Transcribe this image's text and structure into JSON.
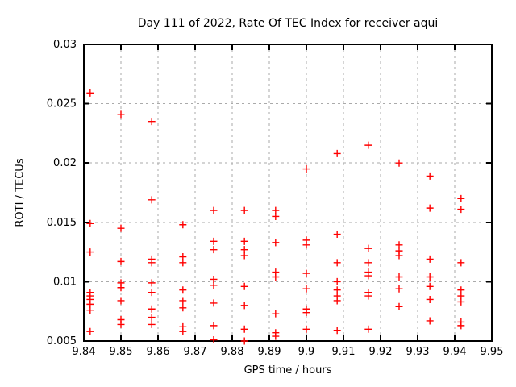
{
  "chart_data": {
    "type": "scatter",
    "title": "Day 111 of 2022, Rate Of TEC Index for receiver aqui",
    "xlabel": "GPS time / hours",
    "ylabel": "ROTI / TECUs",
    "xlim": [
      9.84,
      9.95
    ],
    "ylim": [
      0.005,
      0.03
    ],
    "xtick_values": [
      9.84,
      9.85,
      9.86,
      9.87,
      9.88,
      9.89,
      9.9,
      9.91,
      9.92,
      9.93,
      9.94,
      9.95
    ],
    "xtick_labels": [
      "9.84",
      "9.85",
      "9.86",
      "9.87",
      "9.88",
      "9.89",
      "9.9",
      "9.91",
      "9.92",
      "9.93",
      "9.94",
      "9.95"
    ],
    "ytick_values": [
      0.005,
      0.01,
      0.015,
      0.02,
      0.025,
      0.03
    ],
    "ytick_labels": [
      "0.005",
      "0.01",
      "0.015",
      "0.02",
      "0.025",
      "0.03"
    ],
    "grid": true,
    "legend": false,
    "marker": {
      "shape": "plus",
      "color": "#ff0000",
      "size": 9
    },
    "colors": {
      "grid": "#aaaaaa",
      "axis": "#000000",
      "background": "#ffffff"
    },
    "series": [
      {
        "name": "ROTI",
        "points": [
          [
            9.8417,
            0.0259
          ],
          [
            9.8417,
            0.0149
          ],
          [
            9.8417,
            0.0125
          ],
          [
            9.8417,
            0.0091
          ],
          [
            9.8417,
            0.0088
          ],
          [
            9.8417,
            0.0085
          ],
          [
            9.8417,
            0.0081
          ],
          [
            9.8417,
            0.0076
          ],
          [
            9.8417,
            0.0058
          ],
          [
            9.85,
            0.0241
          ],
          [
            9.85,
            0.0145
          ],
          [
            9.85,
            0.0117
          ],
          [
            9.85,
            0.0099
          ],
          [
            9.85,
            0.0095
          ],
          [
            9.85,
            0.0084
          ],
          [
            9.85,
            0.0068
          ],
          [
            9.85,
            0.0064
          ],
          [
            9.8583,
            0.0235
          ],
          [
            9.8583,
            0.0169
          ],
          [
            9.8583,
            0.0119
          ],
          [
            9.8583,
            0.0116
          ],
          [
            9.8583,
            0.0099
          ],
          [
            9.8583,
            0.0091
          ],
          [
            9.8583,
            0.0077
          ],
          [
            9.8583,
            0.007
          ],
          [
            9.8583,
            0.0064
          ],
          [
            9.8667,
            0.0148
          ],
          [
            9.8667,
            0.0121
          ],
          [
            9.8667,
            0.0116
          ],
          [
            9.8667,
            0.0093
          ],
          [
            9.8667,
            0.0084
          ],
          [
            9.8667,
            0.0078
          ],
          [
            9.8667,
            0.0062
          ],
          [
            9.8667,
            0.0058
          ],
          [
            9.875,
            0.016
          ],
          [
            9.875,
            0.0134
          ],
          [
            9.875,
            0.0127
          ],
          [
            9.875,
            0.0102
          ],
          [
            9.875,
            0.0097
          ],
          [
            9.875,
            0.0082
          ],
          [
            9.875,
            0.0063
          ],
          [
            9.875,
            0.0051
          ],
          [
            9.8833,
            0.016
          ],
          [
            9.8833,
            0.0134
          ],
          [
            9.8833,
            0.0127
          ],
          [
            9.8833,
            0.0122
          ],
          [
            9.8833,
            0.0096
          ],
          [
            9.8833,
            0.008
          ],
          [
            9.8833,
            0.006
          ],
          [
            9.8833,
            0.005
          ],
          [
            9.8917,
            0.016
          ],
          [
            9.8917,
            0.0155
          ],
          [
            9.8917,
            0.0133
          ],
          [
            9.8917,
            0.0108
          ],
          [
            9.8917,
            0.0104
          ],
          [
            9.8917,
            0.0073
          ],
          [
            9.8917,
            0.0057
          ],
          [
            9.8917,
            0.0054
          ],
          [
            9.9,
            0.0195
          ],
          [
            9.9,
            0.0135
          ],
          [
            9.9,
            0.0131
          ],
          [
            9.9,
            0.0107
          ],
          [
            9.9,
            0.0094
          ],
          [
            9.9,
            0.0077
          ],
          [
            9.9,
            0.0074
          ],
          [
            9.9,
            0.006
          ],
          [
            9.9083,
            0.0208
          ],
          [
            9.9083,
            0.014
          ],
          [
            9.9083,
            0.0116
          ],
          [
            9.9083,
            0.01
          ],
          [
            9.9083,
            0.0093
          ],
          [
            9.9083,
            0.0088
          ],
          [
            9.9083,
            0.0084
          ],
          [
            9.9083,
            0.0059
          ],
          [
            9.9167,
            0.0215
          ],
          [
            9.9167,
            0.0128
          ],
          [
            9.9167,
            0.0116
          ],
          [
            9.9167,
            0.0108
          ],
          [
            9.9167,
            0.0105
          ],
          [
            9.9167,
            0.0091
          ],
          [
            9.9167,
            0.0088
          ],
          [
            9.9167,
            0.006
          ],
          [
            9.925,
            0.02
          ],
          [
            9.925,
            0.0131
          ],
          [
            9.925,
            0.0126
          ],
          [
            9.925,
            0.0122
          ],
          [
            9.925,
            0.0104
          ],
          [
            9.925,
            0.0094
          ],
          [
            9.925,
            0.0079
          ],
          [
            9.9333,
            0.0189
          ],
          [
            9.9333,
            0.0162
          ],
          [
            9.9333,
            0.0119
          ],
          [
            9.9333,
            0.0104
          ],
          [
            9.9333,
            0.0096
          ],
          [
            9.9333,
            0.0085
          ],
          [
            9.9333,
            0.0067
          ],
          [
            9.9417,
            0.017
          ],
          [
            9.9417,
            0.0161
          ],
          [
            9.9417,
            0.0116
          ],
          [
            9.9417,
            0.0093
          ],
          [
            9.9417,
            0.0088
          ],
          [
            9.9417,
            0.0083
          ],
          [
            9.9417,
            0.0066
          ],
          [
            9.9417,
            0.0063
          ]
        ]
      }
    ]
  }
}
